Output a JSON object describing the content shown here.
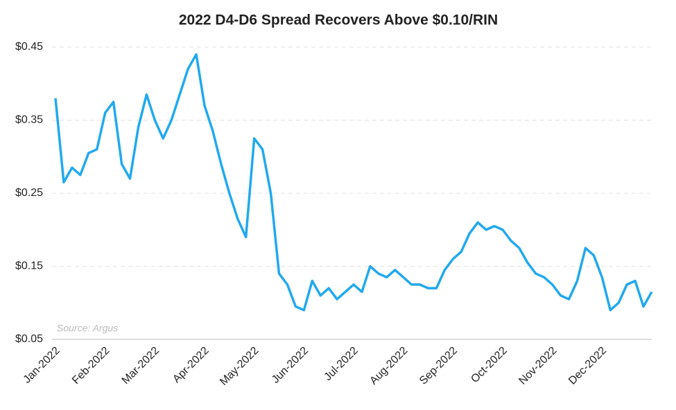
{
  "chart_data": {
    "type": "line",
    "title": "2022 D4-D6 Spread Recovers Above $0.10/RIN",
    "annotation": "Source: Argus",
    "categories": [
      "Jan-2022",
      null,
      null,
      null,
      null,
      null,
      "Feb-2022",
      null,
      null,
      null,
      null,
      null,
      "Mar-2022",
      null,
      null,
      null,
      null,
      null,
      "Apr-2022",
      null,
      null,
      null,
      null,
      null,
      "May-2022",
      null,
      null,
      null,
      null,
      null,
      "Jun-2022",
      null,
      null,
      null,
      null,
      null,
      "Jul-2022",
      null,
      null,
      null,
      null,
      null,
      "Aug-2022",
      null,
      null,
      null,
      null,
      null,
      "Sep-2022",
      null,
      null,
      null,
      null,
      null,
      "Oct-2022",
      null,
      null,
      null,
      null,
      null,
      "Nov-2022",
      null,
      null,
      null,
      null,
      null,
      "Dec-2022",
      null,
      null,
      null,
      null,
      null,
      null
    ],
    "series": [
      {
        "name": "D4-D6 Spread",
        "color": "#21a9ee",
        "values": [
          0.38,
          0.265,
          0.285,
          0.275,
          0.305,
          0.31,
          0.36,
          0.375,
          0.29,
          0.27,
          0.34,
          0.385,
          0.35,
          0.325,
          0.35,
          0.385,
          0.42,
          0.44,
          0.37,
          0.335,
          0.29,
          0.25,
          0.215,
          0.19,
          0.325,
          0.31,
          0.25,
          0.14,
          0.125,
          0.095,
          0.09,
          0.13,
          0.11,
          0.12,
          0.105,
          0.115,
          0.125,
          0.115,
          0.15,
          0.14,
          0.135,
          0.145,
          0.135,
          0.125,
          0.125,
          0.12,
          0.12,
          0.145,
          0.16,
          0.17,
          0.195,
          0.21,
          0.2,
          0.205,
          0.2,
          0.185,
          0.175,
          0.155,
          0.14,
          0.135,
          0.125,
          0.11,
          0.105,
          0.13,
          0.175,
          0.165,
          0.135,
          0.09,
          0.1,
          0.125,
          0.13,
          0.095,
          0.115
        ]
      }
    ],
    "ylim": [
      0.05,
      0.45
    ],
    "yticks": [
      {
        "value": 0.05,
        "label": "$0.05"
      },
      {
        "value": 0.15,
        "label": "$0.15"
      },
      {
        "value": 0.25,
        "label": "$0.25"
      },
      {
        "value": 0.35,
        "label": "$0.35"
      },
      {
        "value": 0.45,
        "label": "$0.45"
      }
    ],
    "grid": true
  }
}
